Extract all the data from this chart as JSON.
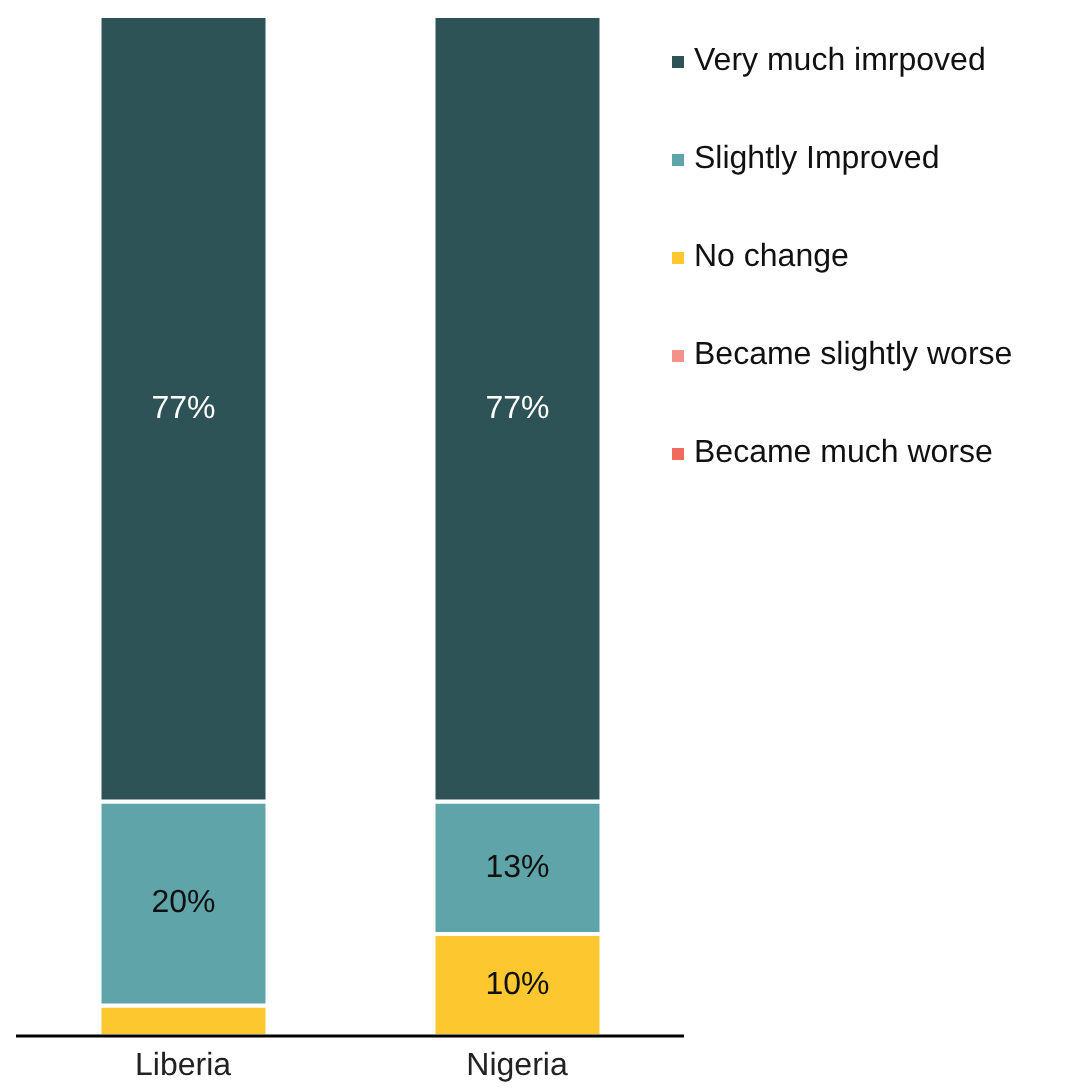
{
  "chart_data": {
    "type": "bar",
    "stacked": true,
    "categories": [
      "Liberia",
      "Nigeria"
    ],
    "series": [
      {
        "name": "Became much worse",
        "color": "#f06a5e",
        "values": [
          0,
          0
        ],
        "value_labels": [
          null,
          null
        ]
      },
      {
        "name": "Became slightly worse",
        "color": "#f3918b",
        "values": [
          0,
          0
        ],
        "value_labels": [
          null,
          null
        ]
      },
      {
        "name": "No change",
        "color": "#fdc82f",
        "values": [
          3,
          10
        ],
        "value_labels": [
          null,
          "10%"
        ]
      },
      {
        "name": "Slightly Improved",
        "color": "#5fa4a8",
        "values": [
          20,
          13
        ],
        "value_labels": [
          "20%",
          "13%"
        ]
      },
      {
        "name": "Very much imrpoved",
        "color": "#2e5356",
        "values": [
          77,
          77
        ],
        "value_labels": [
          "77%",
          "77%"
        ]
      }
    ],
    "legend": "right"
  }
}
